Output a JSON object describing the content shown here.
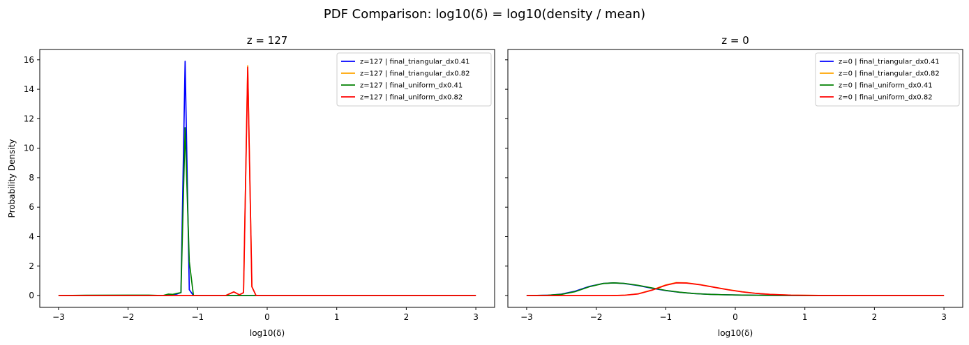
{
  "suptitle": "PDF Comparison: log10(δ) = log10(density / mean)",
  "chart_data": [
    {
      "type": "line",
      "title": "z = 127",
      "xlabel": "log10(δ)",
      "ylabel": "Probability Density",
      "xlim": [
        -3.27,
        3.27
      ],
      "ylim": [
        -0.8,
        16.7
      ],
      "xticks": [
        -3,
        -2,
        -1,
        0,
        1,
        2,
        3
      ],
      "xtick_labels": [
        "−3",
        "−2",
        "−1",
        "0",
        "1",
        "2",
        "3"
      ],
      "yticks": [
        0,
        2,
        4,
        6,
        8,
        10,
        12,
        14,
        16
      ],
      "ytick_labels": [
        "0",
        "2",
        "4",
        "6",
        "8",
        "10",
        "12",
        "14",
        "16"
      ],
      "legend_position": "top-right",
      "series": [
        {
          "name": "z=127 | final_triangular_dx0.41",
          "color": "#0000ff",
          "x": [
            -3,
            -1.5,
            -1.42,
            -1.36,
            -1.3,
            -1.24,
            -1.18,
            -1.12,
            -1.06,
            -0.98,
            0,
            3
          ],
          "y": [
            0,
            0,
            0.05,
            0.08,
            0.1,
            0.2,
            15.9,
            0.4,
            0,
            0,
            0,
            0
          ]
        },
        {
          "name": "z=127 | final_triangular_dx0.82",
          "color": "#ffa500",
          "x": [
            -3,
            -0.6,
            -0.48,
            -0.4,
            -0.34,
            -0.28,
            -0.22,
            -0.16,
            -0.1,
            0,
            3
          ],
          "y": [
            0,
            0,
            0.25,
            0.05,
            0.2,
            15.6,
            0.6,
            0,
            0,
            0,
            0
          ]
        },
        {
          "name": "z=127 | final_uniform_dx0.41",
          "color": "#008000",
          "x": [
            -3,
            -2.6,
            -2.0,
            -1.7,
            -1.5,
            -1.42,
            -1.36,
            -1.3,
            -1.24,
            -1.18,
            -1.12,
            -1.06,
            -0.98,
            0,
            3
          ],
          "y": [
            0,
            0.02,
            0.03,
            0.03,
            0,
            0.1,
            0.08,
            0.15,
            0.2,
            11.4,
            2.3,
            0,
            0,
            0,
            0
          ]
        },
        {
          "name": "z=127 | final_uniform_dx0.82",
          "color": "#ff0000",
          "x": [
            -3,
            -0.6,
            -0.48,
            -0.4,
            -0.34,
            -0.28,
            -0.22,
            -0.16,
            -0.1,
            0,
            3
          ],
          "y": [
            0,
            0,
            0.25,
            0.05,
            0.2,
            15.5,
            0.6,
            0,
            0,
            0,
            0
          ]
        }
      ]
    },
    {
      "type": "line",
      "title": "z = 0",
      "xlabel": "log10(δ)",
      "ylabel": "",
      "xlim": [
        -3.27,
        3.27
      ],
      "ylim": [
        -0.8,
        16.7
      ],
      "xticks": [
        -3,
        -2,
        -1,
        0,
        1,
        2,
        3
      ],
      "xtick_labels": [
        "−3",
        "−2",
        "−1",
        "0",
        "1",
        "2",
        "3"
      ],
      "yticks": [
        0,
        2,
        4,
        6,
        8,
        10,
        12,
        14,
        16
      ],
      "ytick_labels": [],
      "legend_position": "top-right",
      "series": [
        {
          "name": "z=0 | final_triangular_dx0.41",
          "color": "#0000ff",
          "x": [
            -3,
            -2.7,
            -2.5,
            -2.3,
            -2.1,
            -1.9,
            -1.75,
            -1.6,
            -1.4,
            -1.2,
            -1.0,
            -0.8,
            -0.6,
            -0.4,
            -0.2,
            0,
            0.3,
            0.6,
            1,
            2,
            3
          ],
          "y": [
            0,
            0.02,
            0.1,
            0.3,
            0.62,
            0.82,
            0.86,
            0.82,
            0.68,
            0.5,
            0.34,
            0.22,
            0.14,
            0.09,
            0.06,
            0.04,
            0.02,
            0.01,
            0,
            0,
            0
          ]
        },
        {
          "name": "z=0 | final_triangular_dx0.82",
          "color": "#ffa500",
          "x": [
            -3,
            -1.8,
            -1.6,
            -1.4,
            -1.2,
            -1.0,
            -0.85,
            -0.7,
            -0.5,
            -0.3,
            -0.1,
            0.1,
            0.3,
            0.5,
            0.8,
            1.2,
            2,
            3
          ],
          "y": [
            0,
            0,
            0.02,
            0.12,
            0.38,
            0.72,
            0.88,
            0.86,
            0.74,
            0.57,
            0.4,
            0.26,
            0.15,
            0.08,
            0.03,
            0.01,
            0,
            0
          ]
        },
        {
          "name": "z=0 | final_uniform_dx0.41",
          "color": "#008000",
          "x": [
            -3,
            -2.7,
            -2.5,
            -2.3,
            -2.1,
            -1.9,
            -1.75,
            -1.6,
            -1.4,
            -1.2,
            -1.0,
            -0.8,
            -0.6,
            -0.4,
            -0.2,
            0,
            0.3,
            0.6,
            1,
            2,
            3
          ],
          "y": [
            0,
            0.02,
            0.08,
            0.27,
            0.6,
            0.82,
            0.86,
            0.83,
            0.7,
            0.52,
            0.35,
            0.23,
            0.14,
            0.09,
            0.06,
            0.04,
            0.02,
            0.01,
            0,
            0,
            0
          ]
        },
        {
          "name": "z=0 | final_uniform_dx0.82",
          "color": "#ff0000",
          "x": [
            -3,
            -1.8,
            -1.6,
            -1.4,
            -1.2,
            -1.0,
            -0.85,
            -0.7,
            -0.5,
            -0.3,
            -0.1,
            0.1,
            0.3,
            0.5,
            0.8,
            1.2,
            2,
            3
          ],
          "y": [
            0,
            0,
            0.02,
            0.11,
            0.36,
            0.7,
            0.86,
            0.85,
            0.73,
            0.56,
            0.39,
            0.25,
            0.15,
            0.08,
            0.03,
            0.01,
            0,
            0
          ]
        }
      ]
    }
  ]
}
